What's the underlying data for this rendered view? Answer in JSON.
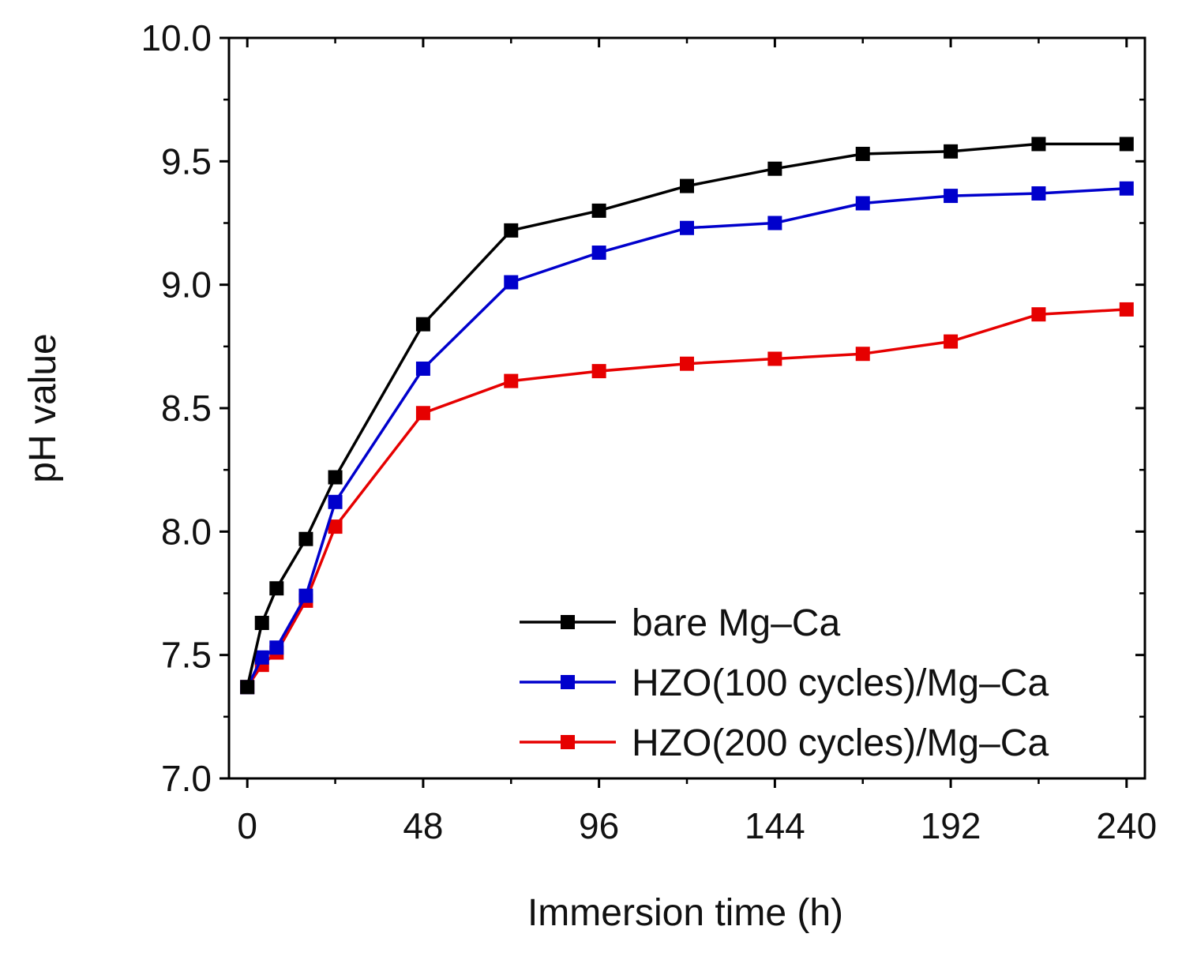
{
  "chart_data": {
    "type": "line",
    "title": "",
    "xlabel": "Immersion time (h)",
    "ylabel": "pH value",
    "xlim": [
      -5,
      245
    ],
    "ylim": [
      7.0,
      10.0
    ],
    "xticks": [
      0,
      48,
      96,
      144,
      192,
      240
    ],
    "xtick_labels": [
      "0",
      "48",
      "96",
      "144",
      "192",
      "240"
    ],
    "yticks": [
      7.0,
      7.5,
      8.0,
      8.5,
      9.0,
      9.5,
      10.0
    ],
    "ytick_labels": [
      "7.0",
      "7.5",
      "8.0",
      "8.5",
      "9.0",
      "9.5",
      "10.0"
    ],
    "grid": false,
    "legend_position": "bottom-right",
    "series": [
      {
        "name": "bare Mg–Ca",
        "color": "#000000",
        "marker": "square",
        "x": [
          0,
          4,
          8,
          16,
          24,
          48,
          72,
          96,
          120,
          144,
          168,
          192,
          216,
          240
        ],
        "y": [
          7.37,
          7.63,
          7.77,
          7.97,
          8.22,
          8.84,
          9.22,
          9.3,
          9.4,
          9.47,
          9.53,
          9.54,
          9.57,
          9.57
        ]
      },
      {
        "name": "HZO(100 cycles)/Mg–Ca",
        "color": "#0000cc",
        "marker": "square",
        "x": [
          0,
          4,
          8,
          16,
          24,
          48,
          72,
          96,
          120,
          144,
          168,
          192,
          216,
          240
        ],
        "y": [
          7.37,
          7.49,
          7.53,
          7.74,
          8.12,
          8.66,
          9.01,
          9.13,
          9.23,
          9.25,
          9.33,
          9.36,
          9.37,
          9.39
        ]
      },
      {
        "name": "HZO(200 cycles)/Mg–Ca",
        "color": "#e60000",
        "marker": "square",
        "x": [
          0,
          4,
          8,
          16,
          24,
          48,
          72,
          96,
          120,
          144,
          168,
          192,
          216,
          240
        ],
        "y": [
          7.37,
          7.46,
          7.51,
          7.72,
          8.02,
          8.48,
          8.61,
          8.65,
          8.68,
          8.7,
          8.72,
          8.77,
          8.88,
          8.9
        ]
      }
    ]
  }
}
